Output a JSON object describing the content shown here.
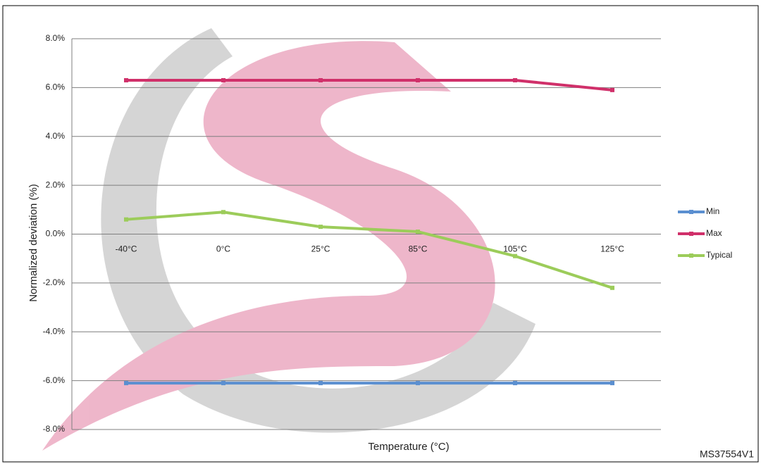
{
  "chart_data": {
    "type": "line",
    "y_label": "Normalized deviation (%)",
    "x_label": "Temperature (°C)",
    "footnote": "MS37554V1",
    "categories": [
      "-40°C",
      "0°C",
      "25°C",
      "85°C",
      "105°C",
      "125°C"
    ],
    "series": [
      {
        "name": "Min",
        "color": "#5b8fd0",
        "values": [
          -6.1,
          -6.1,
          -6.1,
          -6.1,
          -6.1,
          -6.1
        ]
      },
      {
        "name": "Max",
        "color": "#d0306a",
        "values": [
          6.3,
          6.3,
          6.3,
          6.3,
          6.3,
          5.9
        ]
      },
      {
        "name": "Typical",
        "color": "#9ccc5a",
        "values": [
          0.6,
          0.9,
          0.3,
          0.1,
          -0.9,
          -2.2
        ]
      }
    ],
    "ylim": [
      -8,
      8
    ],
    "yticks": [
      {
        "value": -8,
        "label": "-8.0%"
      },
      {
        "value": -6,
        "label": "-6.0%"
      },
      {
        "value": -4,
        "label": "-4.0%"
      },
      {
        "value": -2,
        "label": "-2.0%"
      },
      {
        "value": 0,
        "label": "0.0%"
      },
      {
        "value": 2,
        "label": "2.0%"
      },
      {
        "value": 4,
        "label": "4.0%"
      },
      {
        "value": 6,
        "label": "6.0%"
      },
      {
        "value": 8,
        "label": "8.0%"
      }
    ],
    "grid": true,
    "legend": "right"
  }
}
